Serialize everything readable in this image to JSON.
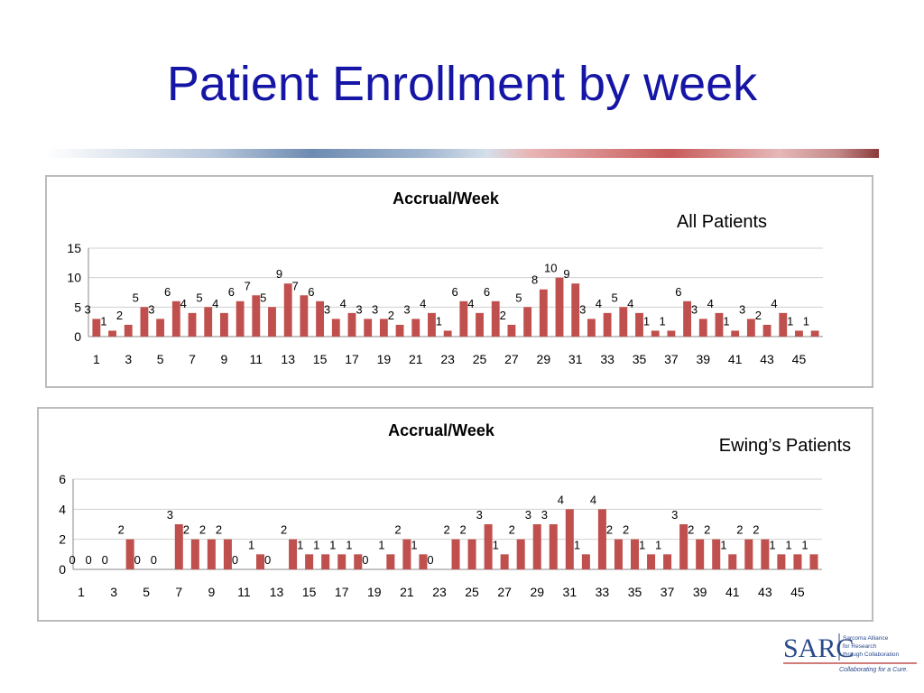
{
  "slide": {
    "title": "Patient Enrollment by week"
  },
  "colors": {
    "title": "#1515a6",
    "bar": "#c0504d",
    "grid": "#d0d0d0"
  },
  "chart_data": [
    {
      "type": "bar",
      "title": "Accrual/Week",
      "annotation": "All Patients",
      "x": [
        1,
        2,
        3,
        4,
        5,
        6,
        7,
        8,
        9,
        10,
        11,
        12,
        13,
        14,
        15,
        16,
        17,
        18,
        19,
        20,
        21,
        22,
        23,
        24,
        25,
        26,
        27,
        28,
        29,
        30,
        31,
        32,
        33,
        34,
        35,
        36,
        37,
        38,
        39,
        40,
        41,
        42,
        43,
        44,
        45,
        46
      ],
      "x_tick_labels": [
        "1",
        "3",
        "5",
        "7",
        "9",
        "11",
        "13",
        "15",
        "17",
        "19",
        "21",
        "23",
        "25",
        "27",
        "29",
        "31",
        "33",
        "35",
        "37",
        "39",
        "41",
        "43",
        "45"
      ],
      "values": [
        3,
        1,
        2,
        5,
        3,
        6,
        4,
        5,
        4,
        6,
        7,
        5,
        9,
        7,
        6,
        3,
        4,
        3,
        3,
        2,
        3,
        4,
        1,
        6,
        4,
        6,
        2,
        5,
        8,
        10,
        9,
        3,
        4,
        5,
        4,
        1,
        1,
        6,
        3,
        4,
        1,
        3,
        2,
        4,
        1,
        1
      ],
      "ylim": [
        0,
        15
      ],
      "yticks": [
        "0",
        "5",
        "10",
        "15"
      ],
      "grid": true,
      "legend": false
    },
    {
      "type": "bar",
      "title": "Accrual/Week",
      "annotation": "Ewing’s Patients",
      "x": [
        1,
        2,
        3,
        4,
        5,
        6,
        7,
        8,
        9,
        10,
        11,
        12,
        13,
        14,
        15,
        16,
        17,
        18,
        19,
        20,
        21,
        22,
        23,
        24,
        25,
        26,
        27,
        28,
        29,
        30,
        31,
        32,
        33,
        34,
        35,
        36,
        37,
        38,
        39,
        40,
        41,
        42,
        43,
        44,
        45,
        46
      ],
      "x_tick_labels": [
        "1",
        "3",
        "5",
        "7",
        "9",
        "11",
        "13",
        "15",
        "17",
        "19",
        "21",
        "23",
        "25",
        "27",
        "29",
        "31",
        "33",
        "35",
        "37",
        "39",
        "41",
        "43",
        "45"
      ],
      "values": [
        0,
        0,
        0,
        2,
        0,
        0,
        3,
        2,
        2,
        2,
        0,
        1,
        0,
        2,
        1,
        1,
        1,
        1,
        0,
        1,
        2,
        1,
        0,
        2,
        2,
        3,
        1,
        2,
        3,
        3,
        4,
        1,
        4,
        2,
        2,
        1,
        1,
        3,
        2,
        2,
        1,
        2,
        2,
        1,
        1,
        1
      ],
      "ylim": [
        0,
        6
      ],
      "yticks": [
        "0",
        "2",
        "4",
        "6"
      ],
      "grid": true,
      "legend": false
    }
  ],
  "logo": {
    "name": "SARC",
    "line1": "Sarcoma Alliance",
    "line2": "for Research",
    "line3": "through Collaboration",
    "tagline": "Collaborating for a Cure."
  }
}
